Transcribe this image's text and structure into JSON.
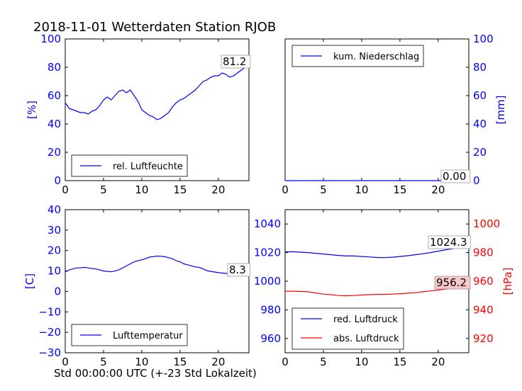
{
  "title": "2018-11-01 Wetterdaten Station RJOB",
  "xlabel": "Std 00:00:00 UTC (+-23 Std Lokalzeit)",
  "colors": {
    "blue": "#0000ff",
    "red": "#ff0000",
    "annot_red_bg": "#f8c8c8"
  },
  "chart_data": [
    {
      "id": "humidity",
      "type": "line",
      "ylabel": "[%]",
      "xlim": [
        0,
        24
      ],
      "ylim": [
        0,
        100
      ],
      "xticks": [
        "0",
        "5",
        "10",
        "15",
        "20"
      ],
      "yticks": [
        "0",
        "20",
        "40",
        "60",
        "80",
        "100"
      ],
      "legend": "rel. Luftfeuchte",
      "legend_loc": "lower-left",
      "last_value": "81.2",
      "series": [
        {
          "name": "rel. Luftfeuchte",
          "color": "#0000ff",
          "x": [
            0,
            0.5,
            1,
            1.5,
            2,
            2.5,
            3,
            3.5,
            4,
            4.5,
            5,
            5.5,
            6,
            6.5,
            7,
            7.5,
            8,
            8.5,
            9,
            9.5,
            10,
            10.5,
            11,
            11.5,
            12,
            12.5,
            13,
            13.5,
            14,
            14.5,
            15,
            15.5,
            16,
            16.5,
            17,
            17.5,
            18,
            18.5,
            19,
            19.5,
            20,
            20.5,
            21,
            21.5,
            22,
            22.5,
            23,
            23.5,
            24
          ],
          "y": [
            55,
            51,
            50,
            49,
            48,
            48,
            47,
            49,
            50,
            53,
            57,
            59,
            57,
            60,
            63,
            64,
            62,
            64,
            60,
            56,
            50,
            48,
            46,
            45,
            43,
            44,
            46,
            48,
            52,
            55,
            57,
            58,
            60,
            62,
            64,
            67,
            70,
            71,
            73,
            74,
            74,
            76,
            75,
            73,
            74,
            76,
            78,
            80,
            81.2
          ]
        }
      ]
    },
    {
      "id": "precipitation",
      "type": "line",
      "ylabel": "[mm]",
      "xlim": [
        0,
        24
      ],
      "ylim": [
        0,
        100
      ],
      "xticks": [
        "0",
        "5",
        "10",
        "15",
        "20"
      ],
      "yticks": [
        "0",
        "20",
        "40",
        "60",
        "80",
        "100"
      ],
      "yaxis_side": "right",
      "legend": "kum. Niederschlag",
      "legend_loc": "upper-left",
      "last_value": "0.00",
      "series": [
        {
          "name": "kum. Niederschlag",
          "color": "#0000ff",
          "x": [
            0,
            24
          ],
          "y": [
            0,
            0
          ]
        }
      ]
    },
    {
      "id": "temperature",
      "type": "line",
      "ylabel": "[C]",
      "xlim": [
        0,
        24
      ],
      "ylim": [
        -30,
        40
      ],
      "xticks": [
        "0",
        "5",
        "10",
        "15",
        "20"
      ],
      "yticks": [
        "−30",
        "−20",
        "−10",
        "0",
        "10",
        "20",
        "30",
        "40"
      ],
      "legend": "Lufttemperatur",
      "legend_loc": "lower-left",
      "last_value": "8.3",
      "series": [
        {
          "name": "Lufttemperatur",
          "color": "#0000ff",
          "x": [
            0,
            0.5,
            1,
            1.5,
            2,
            2.5,
            3,
            3.5,
            4,
            4.5,
            5,
            5.5,
            6,
            6.5,
            7,
            7.5,
            8,
            8.5,
            9,
            9.5,
            10,
            10.5,
            11,
            11.5,
            12,
            12.5,
            13,
            13.5,
            14,
            14.5,
            15,
            15.5,
            16,
            16.5,
            17,
            17.5,
            18,
            18.5,
            19,
            19.5,
            20,
            20.5,
            21,
            21.5,
            22,
            22.5,
            23,
            23.5,
            24
          ],
          "y": [
            9.5,
            10.5,
            11,
            11.5,
            11.5,
            11.8,
            11.5,
            11.2,
            11,
            10.5,
            10,
            9.8,
            9.6,
            10,
            10.5,
            11.5,
            12.5,
            13.5,
            14.5,
            15,
            15.5,
            16,
            16.8,
            17,
            17.3,
            17.2,
            17,
            16.5,
            16,
            15,
            14.5,
            13.5,
            13,
            12.5,
            12,
            11.8,
            11,
            10.2,
            9.8,
            9.5,
            9.2,
            9.0,
            8.8,
            8.8,
            8.6,
            8.5,
            8.4,
            8.3,
            8.3
          ]
        }
      ]
    },
    {
      "id": "pressure",
      "type": "line",
      "ylabel_right": "[hPa]",
      "xlim": [
        0,
        24
      ],
      "ylim_left": [
        950,
        1050
      ],
      "ylim_right": [
        910,
        1010
      ],
      "xticks": [
        "0",
        "5",
        "10",
        "15",
        "20"
      ],
      "yticks_left": [
        "960",
        "980",
        "1000",
        "1020",
        "1040"
      ],
      "yticks_right": [
        "920",
        "940",
        "960",
        "980",
        "1000"
      ],
      "legend": [
        "red. Luftdruck",
        "abs. Luftdruck"
      ],
      "legend_loc": "lower-left",
      "last_values": [
        "1024.3",
        "956.2"
      ],
      "series": [
        {
          "name": "red. Luftdruck",
          "color": "#0000ff",
          "axis": "left",
          "x": [
            0,
            1,
            2,
            3,
            4,
            5,
            6,
            7,
            8,
            9,
            10,
            11,
            12,
            13,
            14,
            15,
            16,
            17,
            18,
            19,
            20,
            21,
            22,
            23,
            24
          ],
          "y": [
            1020.5,
            1020.6,
            1020.3,
            1020,
            1019.5,
            1019,
            1018.5,
            1018,
            1017.6,
            1017.6,
            1017.3,
            1017,
            1016.6,
            1016.5,
            1016.8,
            1017.3,
            1017.8,
            1018.5,
            1019.2,
            1020,
            1021,
            1022,
            1022.8,
            1023.6,
            1024.3
          ]
        },
        {
          "name": "abs. Luftdruck",
          "color": "#ff0000",
          "axis": "right",
          "x": [
            0,
            1,
            2,
            3,
            4,
            5,
            6,
            7,
            8,
            9,
            10,
            11,
            12,
            13,
            14,
            15,
            16,
            17,
            18,
            19,
            20,
            21,
            22,
            23,
            24
          ],
          "y": [
            953,
            953,
            952.8,
            952.6,
            951.8,
            951,
            950.6,
            950,
            949.8,
            950,
            950.4,
            950.6,
            950.8,
            950.8,
            951,
            951.3,
            951.6,
            952,
            952.6,
            953.2,
            953.8,
            954.5,
            955.1,
            955.7,
            956.2
          ]
        }
      ]
    }
  ]
}
